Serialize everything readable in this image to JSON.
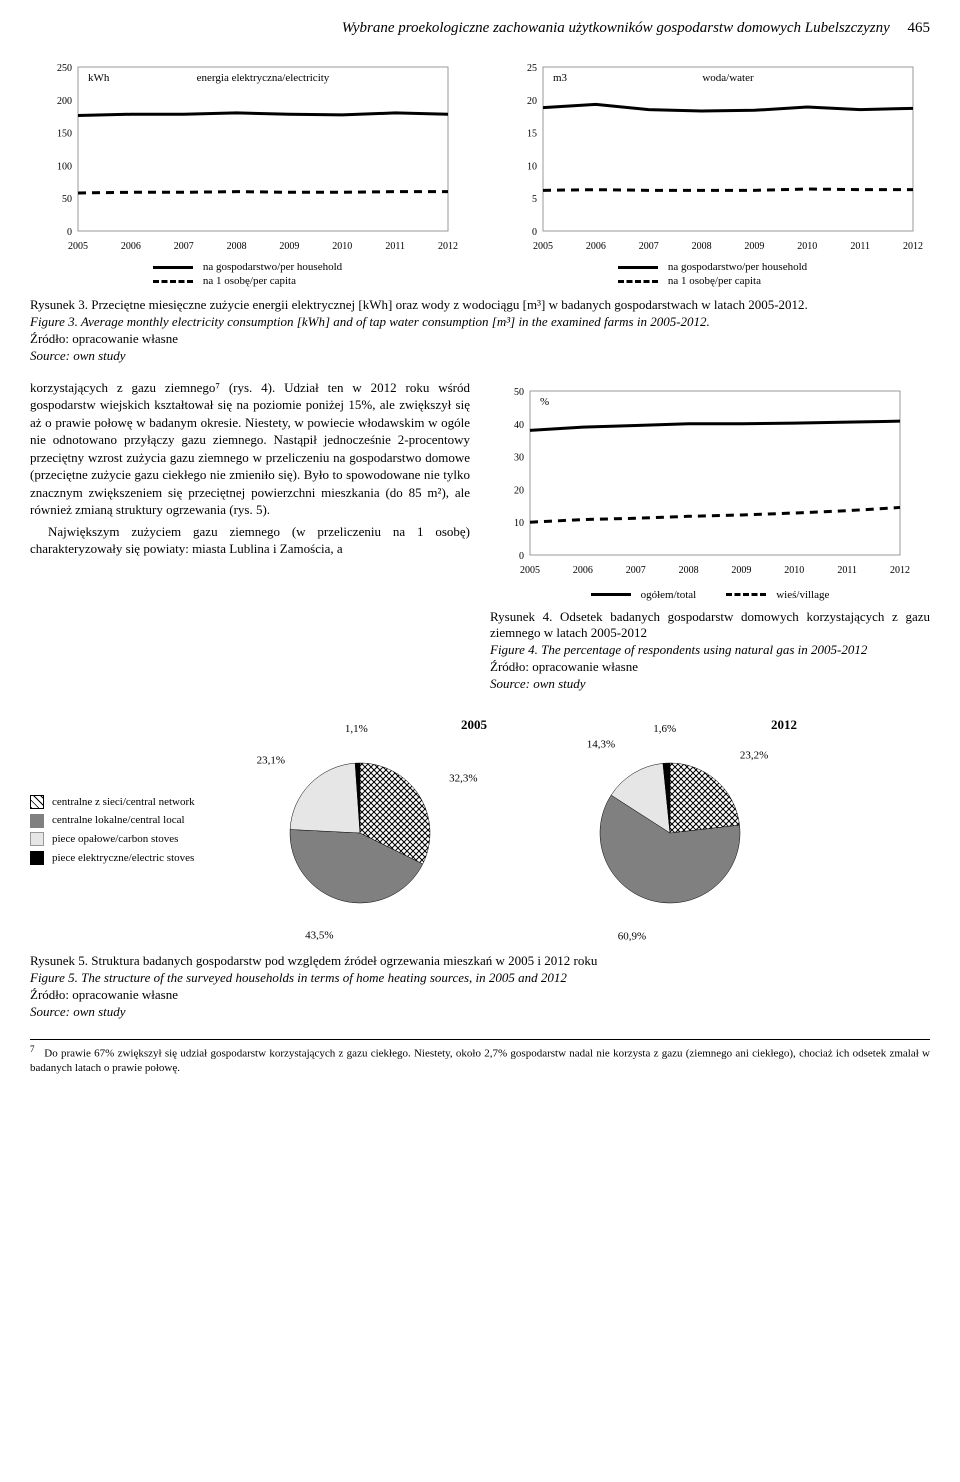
{
  "header": {
    "title": "Wybrane proekologiczne zachowania użytkowników gospodarstw domowych Lubelszczyzny",
    "page": "465"
  },
  "chart_electricity": {
    "type": "line",
    "title": "energia elektryczna/electricity",
    "unit": "kWh",
    "years": [
      2005,
      2006,
      2007,
      2008,
      2009,
      2010,
      2011,
      2012
    ],
    "series": {
      "household": [
        176,
        178,
        178,
        180,
        178,
        177,
        180,
        178
      ],
      "per_capita": [
        58,
        59,
        59,
        60,
        59,
        59,
        60,
        60
      ]
    },
    "ylim": [
      0,
      250
    ],
    "ytick_step": 50,
    "line_colors": [
      "#000000",
      "#000000"
    ],
    "line_styles": [
      "solid",
      "dashed"
    ],
    "line_width": 3,
    "axis_fontsize": 10,
    "background_color": "#ffffff",
    "legend": [
      "na gospodarstwo/per household",
      "na 1 osobę/per capita"
    ]
  },
  "chart_water": {
    "type": "line",
    "title": "woda/water",
    "unit": "m3",
    "years": [
      2005,
      2006,
      2007,
      2008,
      2009,
      2010,
      2011,
      2012
    ],
    "series": {
      "household": [
        18.8,
        19.3,
        18.5,
        18.3,
        18.4,
        18.9,
        18.5,
        18.7
      ],
      "per_capita": [
        6.2,
        6.3,
        6.2,
        6.2,
        6.2,
        6.4,
        6.3,
        6.3
      ]
    },
    "ylim": [
      0,
      25
    ],
    "ytick_step": 5,
    "line_colors": [
      "#000000",
      "#000000"
    ],
    "line_styles": [
      "solid",
      "dashed"
    ],
    "line_width": 3,
    "axis_fontsize": 10,
    "background_color": "#ffffff",
    "legend": [
      "na gospodarstwo/per household",
      "na 1 osobę/per capita"
    ]
  },
  "caption3": {
    "pl": "Rysunek 3. Przeciętne miesięczne zużycie energii elektrycznej [kWh] oraz wody z wodociągu [m³] w badanych gospodarstwach w latach 2005-2012.",
    "en": "Figure 3. Average monthly electricity consumption [kWh] and of tap water consumption [m³] in the examined farms in 2005-2012.",
    "src_pl": "Źródło: opracowanie własne",
    "src_en": "Source: own study"
  },
  "body_para": "korzystających z gazu ziemnego⁷ (rys. 4). Udział ten w 2012 roku wśród gospodarstw wiejskich kształtował się na poziomie poniżej 15%, ale zwiększył się aż o prawie połowę w badanym okresie. Niestety, w powiecie włodawskim w ogóle nie odnotowano przyłączy gazu ziemnego. Nastąpił jednocześnie 2-procentowy przeciętny wzrost zużycia gazu ziemnego w przeliczeniu na gospodarstwo domowe (przeciętne zużycie gazu ciekłego nie zmieniło się). Było to spowodowane nie tylko znacznym zwiększeniem się przeciętnej powierzchni mieszkania (do 85 m²), ale również zmianą struktury ogrzewania (rys. 5).",
  "body_para2": "Największym zużyciem gazu ziemnego (w przeliczeniu na 1 osobę) charakteryzowały się powiaty: miasta Lublina i Zamościa, a",
  "chart_gas": {
    "type": "line",
    "unit": "%",
    "years": [
      2005,
      2006,
      2007,
      2008,
      2009,
      2010,
      2011,
      2012
    ],
    "series": {
      "total": [
        38,
        39,
        39.5,
        40,
        40,
        40.2,
        40.5,
        40.8
      ],
      "village": [
        10,
        10.8,
        11.2,
        11.8,
        12.2,
        12.8,
        13.5,
        14.5
      ]
    },
    "ylim": [
      0,
      50
    ],
    "ytick_step": 10,
    "line_colors": [
      "#000000",
      "#000000"
    ],
    "line_styles": [
      "solid",
      "dashed"
    ],
    "line_width": 3,
    "axis_fontsize": 10,
    "background_color": "#ffffff",
    "legend": [
      "ogółem/total",
      "wieś/village"
    ]
  },
  "caption4": {
    "pl": "Rysunek 4. Odsetek badanych gospodarstw domowych korzystających z gazu ziemnego w latach 2005-2012",
    "en": "Figure 4. The percentage of respondents using natural gas in 2005-2012",
    "src_pl": "Źródło: opracowanie własne",
    "src_en": "Source: own study"
  },
  "pies": {
    "legend": [
      "centralne z sieci/central network",
      "centralne lokalne/central local",
      "piece opałowe/carbon stoves",
      "piece elektryczne/electric stoves"
    ],
    "colors": [
      "crosshatch",
      "#808080",
      "#e6e6e6",
      "#000000"
    ],
    "pie_2005": {
      "year": "2005",
      "slices": [
        32.3,
        43.5,
        23.1,
        1.1
      ],
      "labels": [
        "32,3%",
        "43,5%",
        "23,1%",
        "1,1%"
      ]
    },
    "pie_2012": {
      "year": "2012",
      "slices": [
        23.2,
        60.9,
        14.3,
        1.6
      ],
      "labels": [
        "23,2%",
        "60,9%",
        "14,3%",
        "1,6%"
      ]
    }
  },
  "caption5": {
    "pl": "Rysunek 5. Struktura badanych gospodarstw pod względem źródeł ogrzewania mieszkań w 2005 i 2012 roku",
    "en": "Figure 5. The structure of the surveyed households in terms of home heating sources, in 2005 and 2012",
    "src_pl": "Źródło: opracowanie własne",
    "src_en": "Source: own study"
  },
  "footnote": {
    "num": "7",
    "text": "Do prawie 67% zwiększył się udział gospodarstw korzystających z gazu ciekłego. Niestety, około 2,7% gospodarstw nadal nie korzysta z gazu (ziemnego ani ciekłego), chociaż ich odsetek zmalał w badanych latach o prawie połowę."
  }
}
